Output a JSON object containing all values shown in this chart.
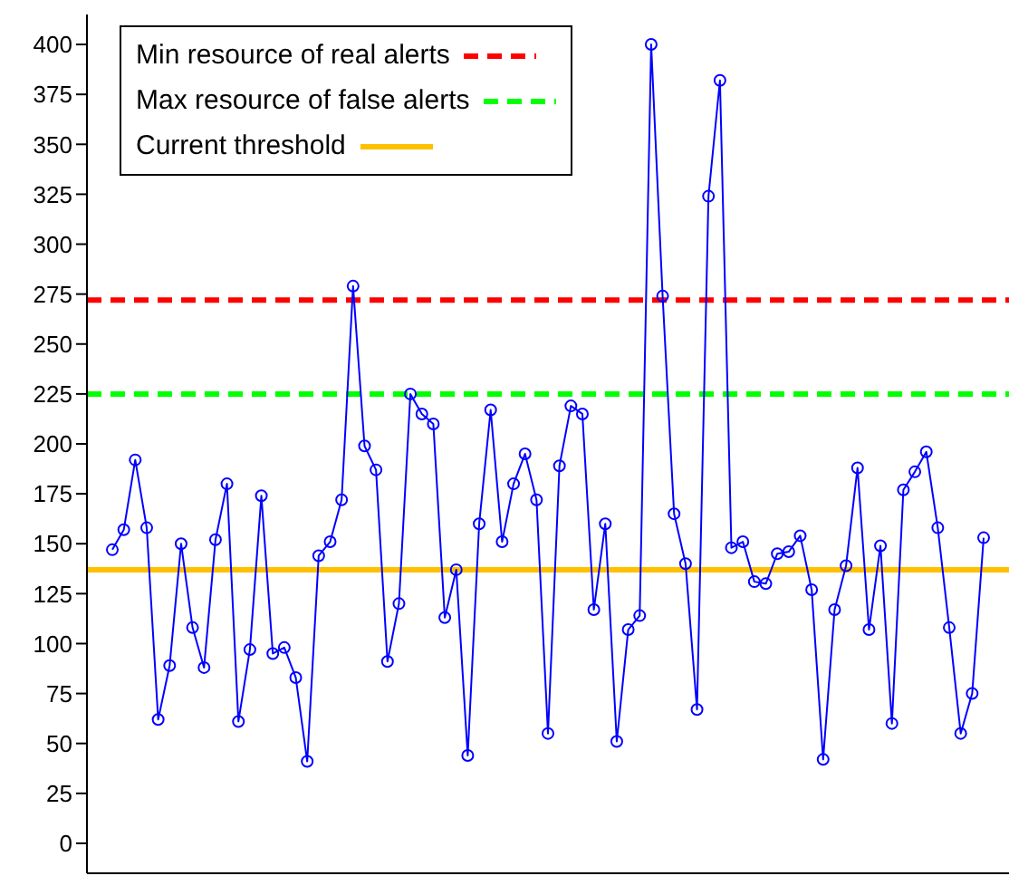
{
  "chart_data": {
    "type": "line",
    "categories": [
      null,
      null,
      null,
      null,
      null,
      null,
      null,
      null,
      null,
      null,
      null,
      null,
      null,
      null,
      null,
      null,
      null,
      null,
      null,
      null,
      null,
      null,
      null,
      null,
      null,
      null,
      null,
      null,
      null,
      null,
      null,
      null,
      null,
      null,
      null,
      null,
      null,
      null,
      null,
      null,
      null,
      null,
      null,
      null,
      null,
      null,
      null,
      null,
      null,
      null,
      null,
      null,
      null,
      null,
      null,
      null,
      null,
      null,
      null,
      null,
      null,
      null,
      null,
      null,
      null,
      null,
      null,
      null,
      null,
      null,
      null,
      null,
      null,
      null,
      null,
      null,
      null
    ],
    "series": [
      {
        "color": "#0000ff",
        "values": [
          147,
          157,
          192,
          158,
          62,
          89,
          150,
          108,
          88,
          152,
          180,
          61,
          97,
          174,
          95,
          98,
          83,
          41,
          144,
          151,
          172,
          279,
          199,
          187,
          91,
          120,
          225,
          215,
          210,
          113,
          137,
          44,
          160,
          217,
          151,
          180,
          195,
          172,
          55,
          189,
          219,
          215,
          117,
          160,
          51,
          107,
          114,
          400,
          274,
          165,
          140,
          67,
          324,
          382,
          148,
          151,
          131,
          130,
          145,
          146,
          154,
          127,
          42,
          117,
          139,
          188,
          107,
          149,
          60,
          177,
          186,
          196,
          158,
          108,
          55,
          75,
          153
        ]
      }
    ],
    "ylim": [
      -15,
      415
    ],
    "yticks": [
      0,
      25,
      50,
      75,
      100,
      125,
      150,
      175,
      200,
      225,
      250,
      275,
      300,
      325,
      350,
      375,
      400
    ],
    "tick_labels": "y",
    "marker": "circle",
    "line_style": "solid",
    "grid": false,
    "legend": "top left",
    "ref_lines": [
      {
        "axis": "y",
        "value": 272,
        "label": "Min resource of real alerts",
        "color": "#ff0000",
        "line_style": "dashed"
      },
      {
        "axis": "y",
        "value": 225,
        "label": "Max resource of false alerts",
        "color": "#00ff00",
        "line_style": "dashed"
      },
      {
        "axis": "y",
        "value": 137,
        "label": "Current threshold",
        "color": "#ffc000",
        "line_style": "solid"
      }
    ]
  }
}
